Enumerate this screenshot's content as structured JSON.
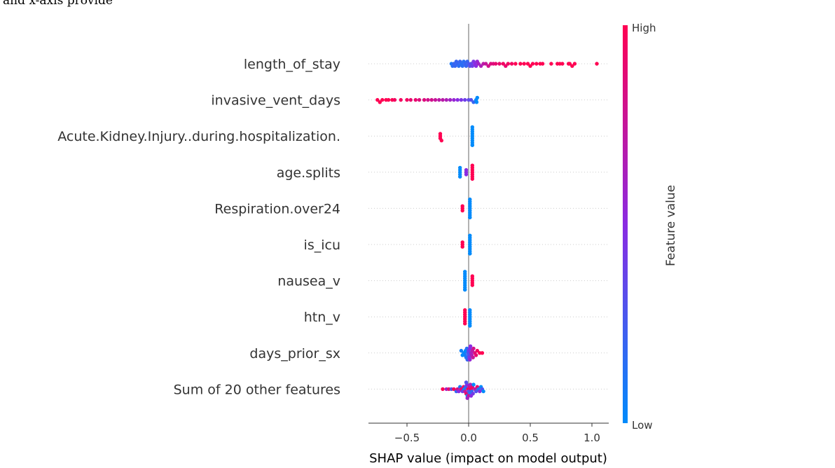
{
  "top_text": "and x-axis provide",
  "colorbar": {
    "high_label": "High",
    "low_label": "Low",
    "title": "Feature value",
    "low_color": "#008bfb",
    "mid_color": "#8a2be2",
    "high_color": "#ff0052"
  },
  "chart_data": {
    "type": "scatter",
    "subtype": "shap-beeswarm",
    "title": "",
    "xlabel": "SHAP value (impact on model output)",
    "ylabel": "",
    "xlim": [
      -0.8,
      1.13
    ],
    "xticks": [
      {
        "value": -0.5,
        "label": "−0.5"
      },
      {
        "value": 0.0,
        "label": "0.0"
      },
      {
        "value": 0.5,
        "label": "0.5"
      },
      {
        "value": 1.0,
        "label": "1.0"
      }
    ],
    "zero_line": true,
    "features": [
      {
        "name": "length_of_stay",
        "points": [
          [
            -0.14,
            0.1
          ],
          [
            -0.13,
            0.15
          ],
          [
            -0.12,
            0.2
          ],
          [
            -0.11,
            0.2
          ],
          [
            -0.1,
            0.2
          ],
          [
            -0.09,
            0.2
          ],
          [
            -0.08,
            0.15
          ],
          [
            -0.07,
            0.2
          ],
          [
            -0.06,
            0.15
          ],
          [
            -0.05,
            0.15
          ],
          [
            -0.04,
            0.15
          ],
          [
            -0.03,
            0.2
          ],
          [
            -0.02,
            0.2
          ],
          [
            -0.01,
            0.2
          ],
          [
            0.0,
            0.25
          ],
          [
            0.01,
            0.3
          ],
          [
            0.02,
            0.35
          ],
          [
            0.03,
            0.4
          ],
          [
            0.04,
            0.45
          ],
          [
            0.05,
            0.5
          ],
          [
            0.06,
            0.5
          ],
          [
            0.07,
            0.55
          ],
          [
            0.08,
            0.6
          ],
          [
            0.1,
            0.65
          ],
          [
            0.12,
            0.7
          ],
          [
            0.14,
            0.75
          ],
          [
            0.16,
            0.8
          ],
          [
            0.18,
            0.85
          ],
          [
            0.2,
            0.85
          ],
          [
            0.22,
            0.9
          ],
          [
            0.25,
            0.9
          ],
          [
            0.28,
            0.95
          ],
          [
            0.3,
            0.9
          ],
          [
            0.32,
            0.95
          ],
          [
            0.35,
            0.95
          ],
          [
            0.38,
            1.0
          ],
          [
            0.42,
            1.0
          ],
          [
            0.45,
            1.0
          ],
          [
            0.48,
            1.0
          ],
          [
            0.5,
            1.0
          ],
          [
            0.52,
            1.0
          ],
          [
            0.55,
            1.0
          ],
          [
            0.58,
            1.0
          ],
          [
            0.6,
            1.0
          ],
          [
            0.67,
            1.0
          ],
          [
            0.72,
            1.0
          ],
          [
            0.74,
            1.0
          ],
          [
            0.76,
            1.0
          ],
          [
            0.81,
            1.0
          ],
          [
            0.82,
            1.0
          ],
          [
            0.84,
            1.0
          ],
          [
            0.86,
            1.0
          ],
          [
            1.04,
            1.0
          ]
        ]
      },
      {
        "name": "invasive_vent_days",
        "points": [
          [
            -0.74,
            1.0
          ],
          [
            -0.72,
            1.0
          ],
          [
            -0.7,
            1.0
          ],
          [
            -0.67,
            1.0
          ],
          [
            -0.65,
            1.0
          ],
          [
            -0.62,
            1.0
          ],
          [
            -0.6,
            0.95
          ],
          [
            -0.55,
            0.95
          ],
          [
            -0.5,
            0.95
          ],
          [
            -0.47,
            0.9
          ],
          [
            -0.43,
            0.9
          ],
          [
            -0.4,
            0.85
          ],
          [
            -0.36,
            0.85
          ],
          [
            -0.33,
            0.8
          ],
          [
            -0.3,
            0.8
          ],
          [
            -0.27,
            0.75
          ],
          [
            -0.24,
            0.7
          ],
          [
            -0.21,
            0.7
          ],
          [
            -0.18,
            0.65
          ],
          [
            -0.15,
            0.6
          ],
          [
            -0.12,
            0.55
          ],
          [
            -0.09,
            0.5
          ],
          [
            -0.06,
            0.45
          ],
          [
            -0.03,
            0.4
          ],
          [
            0.0,
            0.35
          ],
          [
            0.02,
            0.3
          ],
          [
            0.04,
            0.2
          ],
          [
            0.06,
            0.0
          ],
          [
            0.065,
            0.0
          ],
          [
            0.07,
            0.0
          ]
        ]
      },
      {
        "name": "Acute.Kidney.Injury..during.hospitalization.",
        "points": [
          [
            -0.23,
            1.0
          ],
          [
            -0.23,
            1.0
          ],
          [
            -0.23,
            1.0
          ],
          [
            -0.22,
            1.0
          ],
          [
            0.03,
            0.0
          ],
          [
            0.03,
            0.0
          ],
          [
            0.03,
            0.0
          ],
          [
            0.03,
            0.0
          ],
          [
            0.03,
            0.0
          ],
          [
            0.03,
            0.0
          ],
          [
            0.03,
            0.0
          ],
          [
            0.03,
            0.0
          ],
          [
            0.03,
            0.0
          ],
          [
            0.03,
            0.0
          ]
        ]
      },
      {
        "name": "age.splits",
        "points": [
          [
            -0.07,
            0.0
          ],
          [
            -0.07,
            0.0
          ],
          [
            -0.07,
            0.0
          ],
          [
            -0.07,
            0.0
          ],
          [
            -0.07,
            0.0
          ],
          [
            -0.02,
            0.5
          ],
          [
            -0.02,
            0.5
          ],
          [
            -0.02,
            0.5
          ],
          [
            0.03,
            1.0
          ],
          [
            0.03,
            1.0
          ],
          [
            0.03,
            1.0
          ],
          [
            0.03,
            1.0
          ],
          [
            0.03,
            1.0
          ],
          [
            0.03,
            1.0
          ],
          [
            0.03,
            1.0
          ]
        ]
      },
      {
        "name": "Respiration.over24",
        "points": [
          [
            -0.05,
            1.0
          ],
          [
            -0.05,
            1.0
          ],
          [
            -0.05,
            1.0
          ],
          [
            0.01,
            0.0
          ],
          [
            0.01,
            0.0
          ],
          [
            0.01,
            0.0
          ],
          [
            0.01,
            0.0
          ],
          [
            0.01,
            0.0
          ],
          [
            0.01,
            0.0
          ],
          [
            0.01,
            0.0
          ],
          [
            0.01,
            0.0
          ],
          [
            0.01,
            0.0
          ],
          [
            0.01,
            0.0
          ]
        ]
      },
      {
        "name": "is_icu",
        "points": [
          [
            -0.05,
            1.0
          ],
          [
            -0.05,
            1.0
          ],
          [
            -0.05,
            1.0
          ],
          [
            0.01,
            0.0
          ],
          [
            0.01,
            0.0
          ],
          [
            0.01,
            0.0
          ],
          [
            0.01,
            0.0
          ],
          [
            0.01,
            0.0
          ],
          [
            0.01,
            0.0
          ],
          [
            0.01,
            0.0
          ],
          [
            0.01,
            0.0
          ],
          [
            0.01,
            0.0
          ],
          [
            0.01,
            0.0
          ]
        ]
      },
      {
        "name": "nausea_v",
        "points": [
          [
            -0.03,
            0.0
          ],
          [
            -0.03,
            0.0
          ],
          [
            -0.03,
            0.0
          ],
          [
            -0.03,
            0.0
          ],
          [
            -0.03,
            0.0
          ],
          [
            -0.03,
            0.0
          ],
          [
            -0.03,
            0.0
          ],
          [
            -0.03,
            0.0
          ],
          [
            -0.03,
            0.0
          ],
          [
            -0.03,
            0.0
          ],
          [
            0.03,
            1.0
          ],
          [
            0.03,
            1.0
          ],
          [
            0.03,
            1.0
          ],
          [
            0.03,
            1.0
          ],
          [
            0.03,
            1.0
          ]
        ]
      },
      {
        "name": "htn_v",
        "points": [
          [
            -0.03,
            1.0
          ],
          [
            -0.03,
            1.0
          ],
          [
            -0.03,
            1.0
          ],
          [
            -0.03,
            1.0
          ],
          [
            -0.03,
            1.0
          ],
          [
            -0.03,
            1.0
          ],
          [
            -0.03,
            1.0
          ],
          [
            0.01,
            0.0
          ],
          [
            0.01,
            0.0
          ],
          [
            0.01,
            0.0
          ],
          [
            0.01,
            0.0
          ],
          [
            0.01,
            0.0
          ],
          [
            0.01,
            0.0
          ],
          [
            0.01,
            0.0
          ],
          [
            0.01,
            0.0
          ]
        ]
      },
      {
        "name": "days_prior_sx",
        "points": [
          [
            -0.04,
            0.0
          ],
          [
            -0.035,
            0.05
          ],
          [
            -0.03,
            0.1
          ],
          [
            -0.025,
            0.0
          ],
          [
            -0.02,
            0.1
          ],
          [
            -0.015,
            0.15
          ],
          [
            -0.01,
            0.2
          ],
          [
            -0.005,
            0.25
          ],
          [
            0.0,
            0.3
          ],
          [
            0.0,
            0.4
          ],
          [
            0.005,
            0.45
          ],
          [
            0.01,
            0.5
          ],
          [
            0.01,
            0.55
          ],
          [
            0.015,
            0.5
          ],
          [
            0.02,
            0.6
          ],
          [
            0.025,
            0.65
          ],
          [
            0.03,
            0.7
          ],
          [
            0.035,
            0.75
          ],
          [
            0.04,
            0.8
          ],
          [
            0.05,
            0.85
          ],
          [
            0.06,
            0.9
          ],
          [
            0.07,
            0.95
          ],
          [
            0.09,
            1.0
          ],
          [
            0.11,
            1.0
          ],
          [
            -0.05,
            0.0
          ],
          [
            -0.06,
            0.05
          ]
        ]
      },
      {
        "name": "Sum of 20 other features",
        "points": [
          [
            -0.21,
            1.0
          ],
          [
            -0.18,
            0.6
          ],
          [
            -0.16,
            0.9
          ],
          [
            -0.14,
            0.3
          ],
          [
            -0.12,
            1.0
          ],
          [
            -0.1,
            0.2
          ],
          [
            -0.09,
            0.8
          ],
          [
            -0.08,
            0.5
          ],
          [
            -0.07,
            0.1
          ],
          [
            -0.06,
            0.9
          ],
          [
            -0.05,
            0.4
          ],
          [
            -0.04,
            1.0
          ],
          [
            -0.035,
            0.0
          ],
          [
            -0.03,
            0.7
          ],
          [
            -0.025,
            0.2
          ],
          [
            -0.02,
            0.9
          ],
          [
            -0.015,
            0.5
          ],
          [
            -0.01,
            0.0
          ],
          [
            -0.005,
            1.0
          ],
          [
            0.0,
            0.3
          ],
          [
            0.005,
            0.8
          ],
          [
            0.01,
            0.1
          ],
          [
            0.015,
            0.6
          ],
          [
            0.02,
            1.0
          ],
          [
            0.025,
            0.2
          ],
          [
            0.03,
            0.9
          ],
          [
            0.035,
            0.4
          ],
          [
            0.04,
            0.0
          ],
          [
            0.05,
            0.7
          ],
          [
            0.06,
            0.3
          ],
          [
            0.07,
            0.9
          ],
          [
            0.08,
            0.1
          ],
          [
            0.09,
            0.5
          ],
          [
            0.1,
            0.0
          ],
          [
            0.11,
            0.3
          ],
          [
            0.12,
            0.0
          ],
          [
            -0.02,
            0.3
          ],
          [
            0.0,
            0.8
          ],
          [
            0.02,
            0.5
          ],
          [
            -0.01,
            0.6
          ]
        ]
      }
    ]
  }
}
